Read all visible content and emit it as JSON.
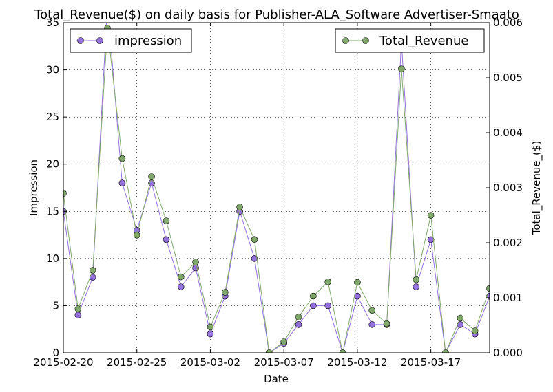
{
  "chart_data": {
    "type": "line",
    "title": "Total_Revenue($) on daily basis for Publisher-ALA_Software Advertiser-Smaato",
    "xlabel": "Date",
    "ylabel_left": "Impression",
    "ylabel_right": "Total_Revenue_($)",
    "x": [
      "2015-02-20",
      "2015-02-21",
      "2015-02-22",
      "2015-02-23",
      "2015-02-24",
      "2015-02-25",
      "2015-02-26",
      "2015-02-27",
      "2015-02-28",
      "2015-03-01",
      "2015-03-02",
      "2015-03-03",
      "2015-03-04",
      "2015-03-05",
      "2015-03-06",
      "2015-03-07",
      "2015-03-08",
      "2015-03-09",
      "2015-03-10",
      "2015-03-11",
      "2015-03-12",
      "2015-03-13",
      "2015-03-14",
      "2015-03-15",
      "2015-03-16",
      "2015-03-17",
      "2015-03-18",
      "2015-03-19",
      "2015-03-20",
      "2015-03-21"
    ],
    "x_ticks": [
      "2015-02-20",
      "2015-02-25",
      "2015-03-02",
      "2015-03-07",
      "2015-03-12",
      "2015-03-17"
    ],
    "ylim_left": [
      0,
      35
    ],
    "ylim_right": [
      0,
      0.006
    ],
    "y_ticks_left": [
      "0",
      "5",
      "10",
      "15",
      "20",
      "25",
      "30",
      "35"
    ],
    "y_ticks_right": [
      "0.000",
      "0.001",
      "0.002",
      "0.003",
      "0.004",
      "0.005",
      "0.006"
    ],
    "grid": true,
    "series": [
      {
        "name": "impression",
        "axis": "left",
        "color": "#9370db",
        "legend_position": "top-left",
        "values": [
          15,
          4,
          8,
          37,
          18,
          13,
          18,
          12,
          7,
          9,
          2,
          6,
          15,
          10,
          0,
          1,
          3,
          5,
          5,
          0,
          6,
          3,
          3,
          33,
          7,
          12,
          0,
          3,
          2,
          6
        ]
      },
      {
        "name": "Total_Revenue",
        "axis": "right",
        "color": "#7fa86a",
        "legend_position": "top-right",
        "values": [
          0.0029,
          0.0008,
          0.0015,
          0.0059,
          0.00353,
          0.00214,
          0.0032,
          0.0024,
          0.00138,
          0.00165,
          0.00047,
          0.0011,
          0.00265,
          0.00206,
          0.0,
          0.0002,
          0.00065,
          0.00103,
          0.00129,
          0.0,
          0.00128,
          0.00077,
          0.00053,
          0.00516,
          0.00133,
          0.0025,
          0.0,
          0.00063,
          0.0004,
          0.00117
        ]
      }
    ]
  }
}
